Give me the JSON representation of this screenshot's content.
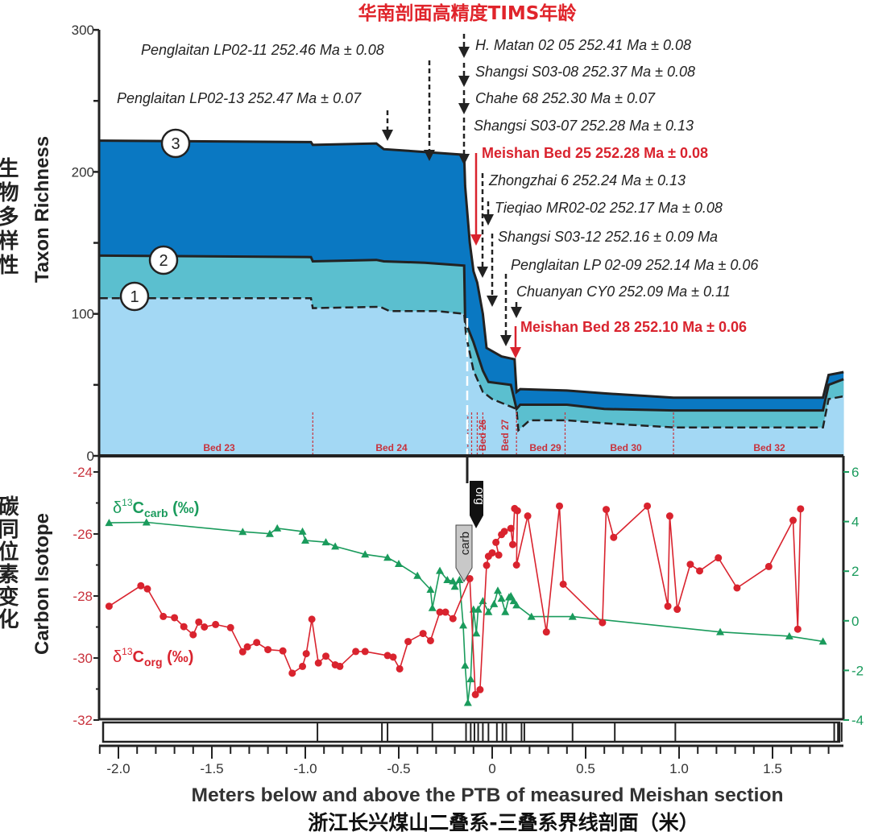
{
  "title": "华南剖面高精度TIMS年龄",
  "chart_data": [
    {
      "type": "area",
      "ylabel_cn": "生物多样性",
      "ylabel": "Taxon Richness",
      "ylim": [
        0,
        300
      ],
      "yticks": [
        "0",
        "100",
        "200",
        "300"
      ],
      "xlim": [
        -2.1,
        1.88
      ],
      "colors": {
        "layer1": "#a3d8f4",
        "layer2": "#5bbfcf",
        "layer3": "#0a78c2"
      },
      "series": [
        {
          "name": "3",
          "x": [
            -2.1,
            -0.97,
            -0.96,
            -0.62,
            -0.58,
            -0.36,
            -0.15,
            -0.145,
            -0.12,
            -0.1,
            -0.08,
            -0.05,
            -0.03,
            0.05,
            0.12,
            0.13,
            0.15,
            0.4,
            0.6,
            0.97,
            1.77,
            1.8,
            1.88
          ],
          "y": [
            222,
            221,
            219,
            220,
            216,
            214,
            212,
            190,
            150,
            130,
            122,
            100,
            76,
            70,
            68,
            45,
            47,
            46,
            44,
            41,
            41,
            57,
            59
          ]
        },
        {
          "name": "2",
          "x": [
            -2.1,
            -0.97,
            -0.96,
            -0.62,
            -0.58,
            -0.36,
            -0.15,
            -0.145,
            -0.1,
            -0.05,
            -0.02,
            0.1,
            0.13,
            0.15,
            0.4,
            0.6,
            0.97,
            1.77,
            1.8,
            1.88
          ],
          "y": [
            141,
            140,
            137,
            138,
            137,
            136,
            134,
            95,
            80,
            60,
            52,
            50,
            33,
            36,
            36,
            33,
            32,
            32,
            50,
            54
          ]
        },
        {
          "name": "1",
          "x": [
            -2.1,
            -0.97,
            -0.96,
            -0.6,
            -0.55,
            -0.3,
            -0.15,
            -0.14,
            -0.1,
            -0.05,
            0,
            0.13,
            0.14,
            0.2,
            0.4,
            0.6,
            0.97,
            1.77,
            1.8,
            1.88
          ],
          "y": [
            111,
            111,
            104,
            105,
            102,
            102,
            100,
            85,
            60,
            45,
            40,
            33,
            18,
            25,
            25,
            23,
            20,
            20,
            40,
            42
          ]
        }
      ],
      "beds": [
        {
          "label": "Bed 23",
          "vertical": false
        },
        {
          "label": "Bed 24",
          "vertical": false
        },
        {
          "label": "Bed 26",
          "vertical": true
        },
        {
          "label": "Bed 27",
          "vertical": true
        },
        {
          "label": "Bed 29",
          "vertical": false
        },
        {
          "label": "Bed 30",
          "vertical": false
        },
        {
          "label": "Bed 32",
          "vertical": false
        }
      ],
      "annotations": [
        {
          "label": "Penglaitan LP02-11  252.46 Ma ± 0.08",
          "highlight": false
        },
        {
          "label": "Penglaitan LP02-13  252.47 Ma ± 0.07",
          "highlight": false
        },
        {
          "label": "H. Matan 02 05  252.41 Ma ± 0.08",
          "highlight": false
        },
        {
          "label": "Shangsi S03-08  252.37 Ma ± 0.08",
          "highlight": false
        },
        {
          "label": "Chahe 68  252.30 Ma ± 0.07",
          "highlight": false
        },
        {
          "label": "Shangsi S03-07  252.28 Ma ± 0.13",
          "highlight": false
        },
        {
          "label": "Meishan Bed 25  252.28 Ma ± 0.08",
          "highlight": true
        },
        {
          "label": "Zhongzhai 6  252.24 Ma ± 0.13",
          "highlight": false
        },
        {
          "label": "Tieqiao  MR02-02  252.17 Ma ± 0.08",
          "highlight": false
        },
        {
          "label": "Shangsi  S03-12  252.16 ± 0.09 Ma",
          "highlight": false
        },
        {
          "label": "Penglaitan LP 02-09  252.14 Ma ± 0.06",
          "highlight": false
        },
        {
          "label": "Chuanyan  CY0  252.09 Ma ± 0.11",
          "highlight": false
        },
        {
          "label": "Meishan Bed 28  252.10 Ma ± 0.06",
          "highlight": true
        }
      ]
    },
    {
      "type": "line",
      "ylabel_cn": "碳同位素变化",
      "ylabel": "Carbon Isotope",
      "xlabel": "Meters below and above the PTB of measured Meishan section",
      "xlabel_cn": "浙江长兴煤山二叠系-三叠系界线剖面（米）",
      "xlim": [
        -2.1,
        1.88
      ],
      "xticks": [
        "-2.0",
        "-1.5",
        "-1.0",
        "-0.5",
        "0",
        "0.5",
        "1.0",
        "1.5"
      ],
      "ylim_left": [
        -32,
        -24
      ],
      "yticks_left": [
        "-24",
        "-26",
        "-28",
        "-30",
        "-32"
      ],
      "ylim_right": [
        -4,
        6
      ],
      "yticks_right": [
        "6",
        "4",
        "2",
        "0",
        "-2",
        "-4"
      ],
      "markers": {
        "carb": "carb",
        "org": "org"
      },
      "series": [
        {
          "name": "δ13Ccarb (‰)",
          "label_main": "δ",
          "label_sup": "13",
          "label_c": "C",
          "label_sub": "carb",
          "label_unit": " (‰)",
          "axis": "right",
          "color": "#1a9b5c",
          "marker": "triangle",
          "x": [
            -2.05,
            -1.85,
            -1.335,
            -1.19,
            -1.15,
            -1.015,
            -1.0,
            -0.89,
            -0.84,
            -0.68,
            -0.56,
            -0.5,
            -0.4,
            -0.33,
            -0.32,
            -0.28,
            -0.24,
            -0.21,
            -0.2,
            -0.175,
            -0.155,
            -0.145,
            -0.13,
            -0.115,
            -0.1,
            -0.085,
            -0.075,
            -0.05,
            -0.02,
            0.01,
            0.03,
            0.05,
            0.07,
            0.09,
            0.1,
            0.115,
            0.13,
            0.21,
            0.43,
            1.22,
            1.59,
            1.77
          ],
          "y": [
            3.95,
            3.97,
            3.59,
            3.51,
            3.73,
            3.6,
            3.24,
            3.17,
            3.0,
            2.68,
            2.55,
            2.3,
            1.82,
            1.26,
            0.52,
            2.02,
            1.65,
            1.6,
            1.38,
            1.65,
            -0.18,
            -1.8,
            -3.3,
            -2.35,
            0.46,
            -0.5,
            0.46,
            0.8,
            0.36,
            0.68,
            1.22,
            0.9,
            0.36,
            0.95,
            1.0,
            0.8,
            0.63,
            0.17,
            0.17,
            -0.45,
            -0.62,
            -0.83
          ]
        },
        {
          "name": "δ13Corg (‰)",
          "label_main": "δ",
          "label_sup": "13",
          "label_c": "C",
          "label_sub": "org",
          "label_unit": " (‰)",
          "axis": "left",
          "color": "#d9232e",
          "marker": "circle",
          "x": [
            -2.05,
            -1.88,
            -1.845,
            -1.76,
            -1.7,
            -1.65,
            -1.6,
            -1.57,
            -1.54,
            -1.48,
            -1.4,
            -1.335,
            -1.31,
            -1.26,
            -1.2,
            -1.12,
            -1.07,
            -1.015,
            -0.995,
            -0.965,
            -0.93,
            -0.89,
            -0.84,
            -0.815,
            -0.73,
            -0.68,
            -0.56,
            -0.53,
            -0.495,
            -0.45,
            -0.37,
            -0.33,
            -0.28,
            -0.25,
            -0.21,
            -0.12,
            -0.09,
            -0.065,
            -0.03,
            -0.02,
            0,
            0.035,
            0.02,
            0.05,
            0.065,
            0.1,
            0.11,
            0.12,
            0.135,
            0.13,
            0.19,
            0.29,
            0.36,
            0.38,
            0.59,
            0.61,
            0.65,
            0.83,
            0.94,
            0.95,
            0.99,
            1.06,
            1.11,
            1.21,
            1.31,
            1.48,
            1.61,
            1.635,
            1.65
          ],
          "y": [
            -28.33,
            -27.67,
            -27.77,
            -28.66,
            -28.7,
            -28.99,
            -29.25,
            -28.84,
            -29.0,
            -28.92,
            -29.02,
            -29.8,
            -29.64,
            -29.5,
            -29.73,
            -29.77,
            -30.49,
            -30.27,
            -29.86,
            -28.75,
            -30.16,
            -29.94,
            -30.22,
            -30.27,
            -29.79,
            -29.79,
            -29.92,
            -29.97,
            -30.35,
            -29.47,
            -29.21,
            -29.44,
            -28.52,
            -28.52,
            -28.73,
            -27.44,
            -31.18,
            -31.02,
            -27.01,
            -26.72,
            -26.61,
            -26.68,
            -26.27,
            -26.02,
            -25.92,
            -25.82,
            -26.34,
            -25.18,
            -25.25,
            -27.0,
            -25.42,
            -29.16,
            -25.1,
            -27.62,
            -28.86,
            -25.21,
            -26.11,
            -25.1,
            -28.33,
            -25.42,
            -28.43,
            -26.98,
            -27.19,
            -26.77,
            -27.74,
            -27.05,
            -25.56,
            -29.07,
            -25.19
          ]
        }
      ],
      "sample_strip_m": [
        -0.935,
        -0.59,
        -0.56,
        -0.32,
        -0.14,
        -0.115,
        -0.095,
        -0.075,
        -0.05,
        -0.02,
        0.025,
        0.055,
        0.075,
        0.157,
        0.172,
        0.43,
        0.656,
        0.98,
        1.83,
        1.85,
        1.87
      ]
    }
  ]
}
